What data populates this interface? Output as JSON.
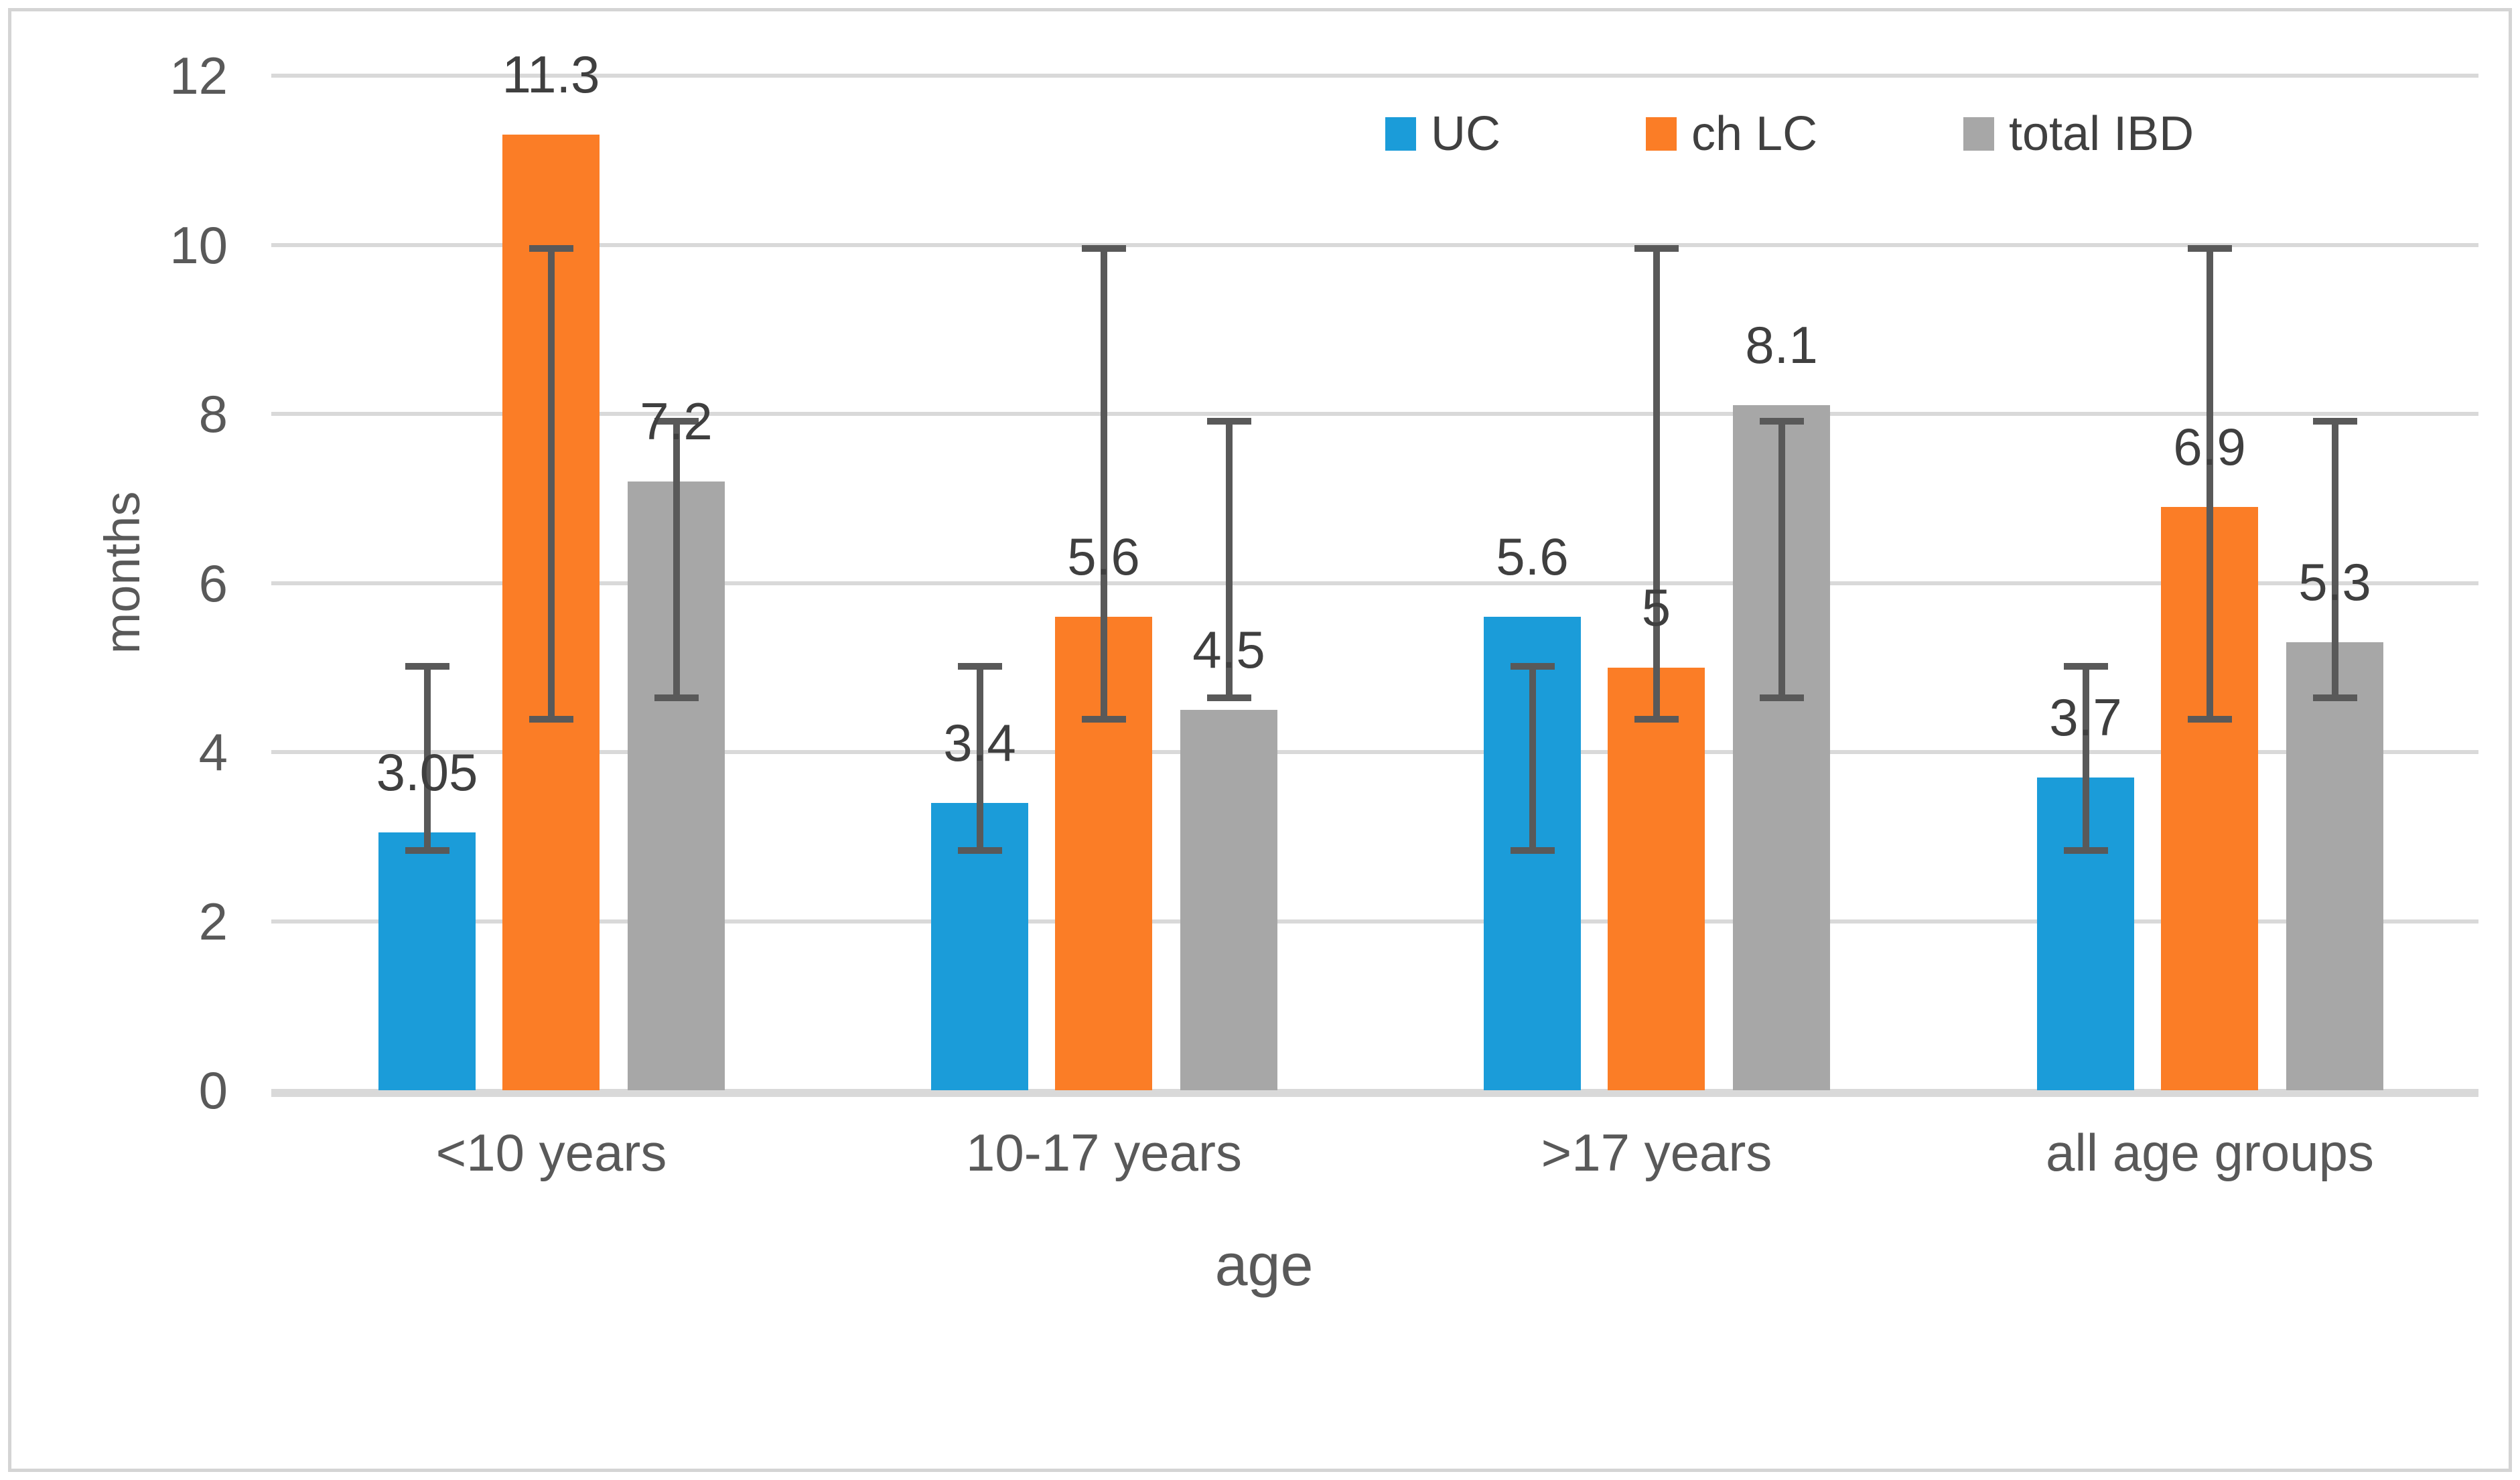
{
  "chart_data": {
    "type": "bar",
    "title": "",
    "categories": [
      "<10 years",
      "10-17 years",
      ">17 years",
      "all age groups"
    ],
    "series": [
      {
        "name": "UC",
        "color": "#1b9cd9",
        "values": [
          3.05,
          3.4,
          5.6,
          3.7
        ],
        "data_labels": [
          "3.05",
          "3.4",
          "5.6",
          "3.7"
        ],
        "error_bar": {
          "low": 2.8,
          "high": 5.05
        }
      },
      {
        "name": "ch LC",
        "color": "#fb7d26",
        "values": [
          11.3,
          5.6,
          5,
          6.9
        ],
        "data_labels": [
          "11.3",
          "5.6",
          "5",
          "6.9"
        ],
        "error_bar": {
          "low": 4.35,
          "high": 10
        }
      },
      {
        "name": "total IBD",
        "color": "#a7a7a7",
        "values": [
          7.2,
          4.5,
          8.1,
          5.3
        ],
        "data_labels": [
          "7.2",
          "4.5",
          "8.1",
          "5.3"
        ],
        "error_bar": {
          "low": 4.6,
          "high": 7.95
        }
      }
    ],
    "xlabel": "age",
    "ylabel": "months",
    "ylim": [
      0,
      12
    ],
    "yticks": [
      0,
      2,
      4,
      6,
      8,
      10,
      12
    ],
    "grid": true,
    "legend_position": "top-inside"
  },
  "ui": {
    "colors": {
      "background": "#ffffff",
      "frame_border": "#d4d4d4",
      "gridline": "#d9d9d9",
      "axis_text": "#595959",
      "data_label_text": "#3f3f3f",
      "error_bar": "#595959"
    }
  }
}
